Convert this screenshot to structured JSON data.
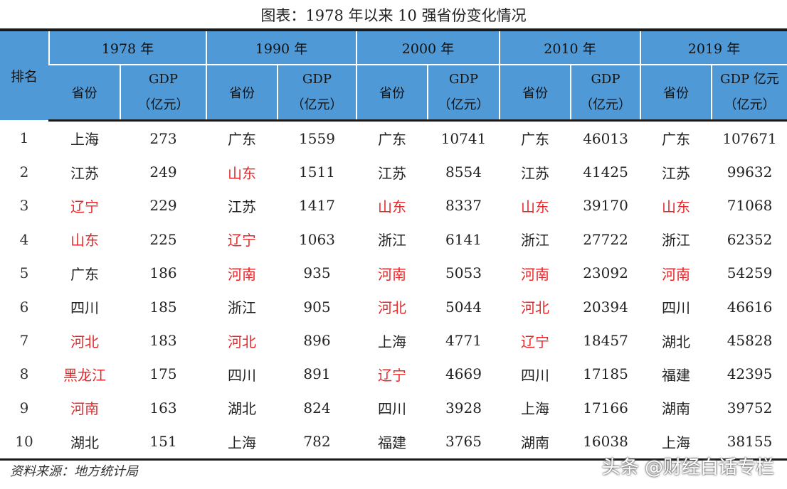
{
  "title": "图表：1978 年以来 10 强省份变化情况",
  "rank_header": "排名",
  "years": [
    {
      "label": "1978 年",
      "province_header": "省份",
      "gdp_header_1": "GDP",
      "gdp_header_2": "（亿元）"
    },
    {
      "label": "1990 年",
      "province_header": "省份",
      "gdp_header_1": "GDP",
      "gdp_header_2": "（亿元）"
    },
    {
      "label": "2000 年",
      "province_header": "省份",
      "gdp_header_1": "GDP",
      "gdp_header_2": "（亿元）"
    },
    {
      "label": "2010 年",
      "province_header": "省份",
      "gdp_header_1": "GDP",
      "gdp_header_2": "（亿元）"
    },
    {
      "label": "2019 年",
      "province_header": "省份",
      "gdp_header_1": "GDP 亿元",
      "gdp_header_2": "（亿元）"
    }
  ],
  "highlight_color": "#e6282a",
  "rows": [
    {
      "rank": "1",
      "cells": [
        {
          "province": "上海",
          "gdp": "273",
          "highlight": false
        },
        {
          "province": "广东",
          "gdp": "1559",
          "highlight": false
        },
        {
          "province": "广东",
          "gdp": "10741",
          "highlight": false
        },
        {
          "province": "广东",
          "gdp": "46013",
          "highlight": false
        },
        {
          "province": "广东",
          "gdp": "107671",
          "highlight": false
        }
      ]
    },
    {
      "rank": "2",
      "cells": [
        {
          "province": "江苏",
          "gdp": "249",
          "highlight": false
        },
        {
          "province": "山东",
          "gdp": "1511",
          "highlight": true
        },
        {
          "province": "江苏",
          "gdp": "8554",
          "highlight": false
        },
        {
          "province": "江苏",
          "gdp": "41425",
          "highlight": false
        },
        {
          "province": "江苏",
          "gdp": "99632",
          "highlight": false
        }
      ]
    },
    {
      "rank": "3",
      "cells": [
        {
          "province": "辽宁",
          "gdp": "229",
          "highlight": true
        },
        {
          "province": "江苏",
          "gdp": "1417",
          "highlight": false
        },
        {
          "province": "山东",
          "gdp": "8337",
          "highlight": true
        },
        {
          "province": "山东",
          "gdp": "39170",
          "highlight": true
        },
        {
          "province": "山东",
          "gdp": "71068",
          "highlight": true
        }
      ]
    },
    {
      "rank": "4",
      "cells": [
        {
          "province": "山东",
          "gdp": "225",
          "highlight": true
        },
        {
          "province": "辽宁",
          "gdp": "1063",
          "highlight": true
        },
        {
          "province": "浙江",
          "gdp": "6141",
          "highlight": false
        },
        {
          "province": "浙江",
          "gdp": "27722",
          "highlight": false
        },
        {
          "province": "浙江",
          "gdp": "62352",
          "highlight": false
        }
      ]
    },
    {
      "rank": "5",
      "cells": [
        {
          "province": "广东",
          "gdp": "186",
          "highlight": false
        },
        {
          "province": "河南",
          "gdp": "935",
          "highlight": true
        },
        {
          "province": "河南",
          "gdp": "5053",
          "highlight": true
        },
        {
          "province": "河南",
          "gdp": "23092",
          "highlight": true
        },
        {
          "province": "河南",
          "gdp": "54259",
          "highlight": true
        }
      ]
    },
    {
      "rank": "6",
      "cells": [
        {
          "province": "四川",
          "gdp": "185",
          "highlight": false
        },
        {
          "province": "浙江",
          "gdp": "905",
          "highlight": false
        },
        {
          "province": "河北",
          "gdp": "5044",
          "highlight": true
        },
        {
          "province": "河北",
          "gdp": "20394",
          "highlight": true
        },
        {
          "province": "四川",
          "gdp": "46616",
          "highlight": false
        }
      ]
    },
    {
      "rank": "7",
      "cells": [
        {
          "province": "河北",
          "gdp": "183",
          "highlight": true
        },
        {
          "province": "河北",
          "gdp": "896",
          "highlight": true
        },
        {
          "province": "上海",
          "gdp": "4771",
          "highlight": false
        },
        {
          "province": "辽宁",
          "gdp": "18457",
          "highlight": true
        },
        {
          "province": "湖北",
          "gdp": "45828",
          "highlight": false
        }
      ]
    },
    {
      "rank": "8",
      "cells": [
        {
          "province": "黑龙江",
          "gdp": "175",
          "highlight": true
        },
        {
          "province": "四川",
          "gdp": "891",
          "highlight": false
        },
        {
          "province": "辽宁",
          "gdp": "4669",
          "highlight": true
        },
        {
          "province": "四川",
          "gdp": "17185",
          "highlight": false
        },
        {
          "province": "福建",
          "gdp": "42395",
          "highlight": false
        }
      ]
    },
    {
      "rank": "9",
      "cells": [
        {
          "province": "河南",
          "gdp": "163",
          "highlight": true
        },
        {
          "province": "湖北",
          "gdp": "824",
          "highlight": false
        },
        {
          "province": "四川",
          "gdp": "3928",
          "highlight": false
        },
        {
          "province": "上海",
          "gdp": "17166",
          "highlight": false
        },
        {
          "province": "湖南",
          "gdp": "39752",
          "highlight": false
        }
      ]
    },
    {
      "rank": "10",
      "cells": [
        {
          "province": "湖北",
          "gdp": "151",
          "highlight": false
        },
        {
          "province": "上海",
          "gdp": "782",
          "highlight": false
        },
        {
          "province": "福建",
          "gdp": "3765",
          "highlight": false
        },
        {
          "province": "湖南",
          "gdp": "16038",
          "highlight": false
        },
        {
          "province": "上海",
          "gdp": "38155",
          "highlight": false
        }
      ]
    }
  ],
  "source": "资料来源：地方统计局",
  "watermark": "头条 @财经白话专栏"
}
